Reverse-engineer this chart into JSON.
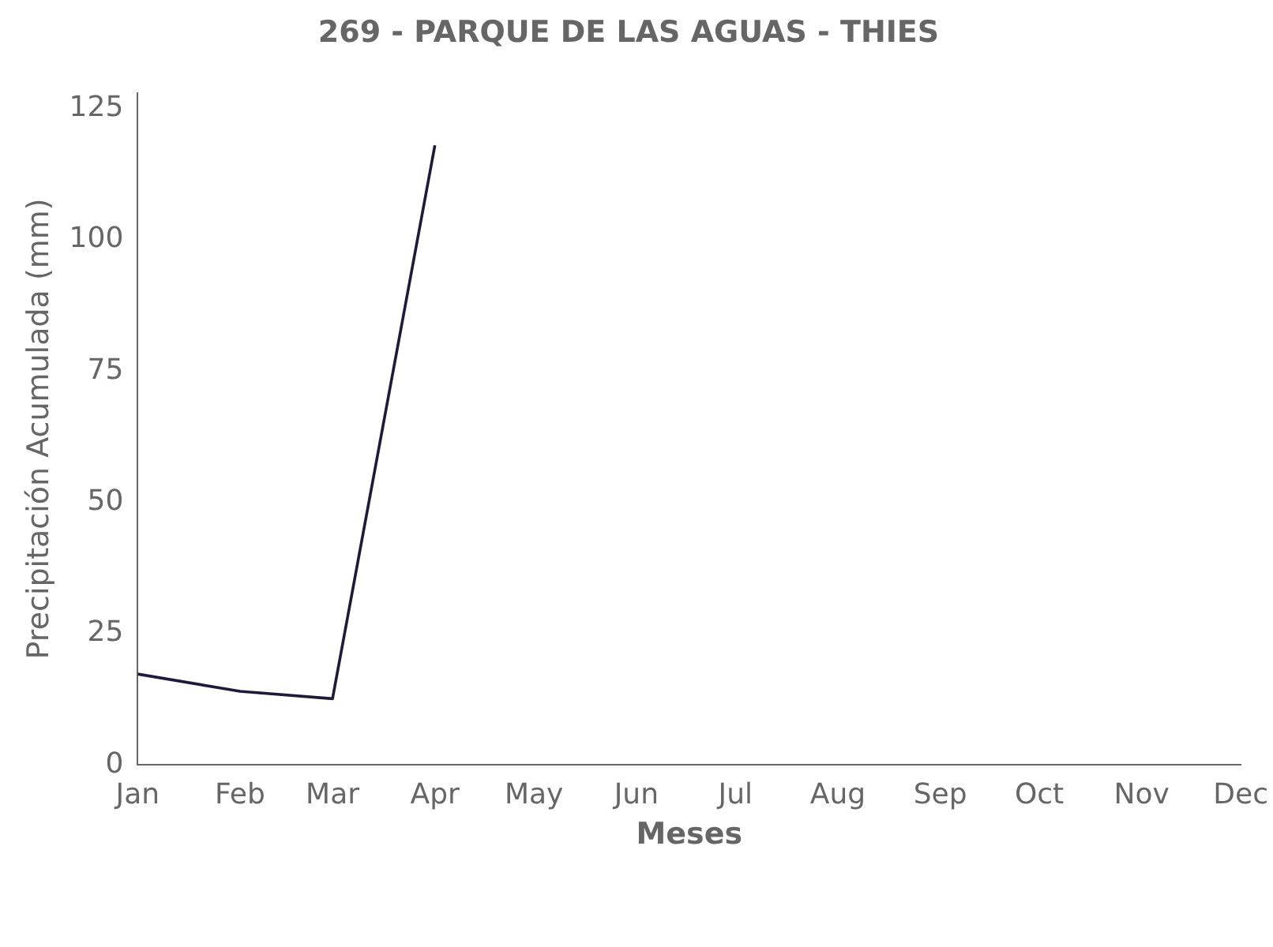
{
  "chart_data": {
    "type": "line",
    "title": "269 - PARQUE DE LAS AGUAS - THIES",
    "xlabel": "Meses",
    "ylabel": "Precipitación Acumulada (mm)",
    "x": [
      "--01-01",
      "--02-01",
      "--03-01",
      "--04-01"
    ],
    "series": [
      {
        "color": "#1f1a3a",
        "values": [
          17.3,
          14.0,
          12.6,
          118.0
        ]
      }
    ],
    "xlim": [
      "--01-01",
      "--12-01"
    ],
    "xticks": [
      {
        "value": "--01-01",
        "label": "Jan"
      },
      {
        "value": "--02-01",
        "label": "Feb"
      },
      {
        "value": "--03-01",
        "label": "Mar"
      },
      {
        "value": "--04-01",
        "label": "Apr"
      },
      {
        "value": "--05-01",
        "label": "May"
      },
      {
        "value": "--06-01",
        "label": "Jun"
      },
      {
        "value": "--07-01",
        "label": "Jul"
      },
      {
        "value": "--08-01",
        "label": "Aug"
      },
      {
        "value": "--09-01",
        "label": "Sep"
      },
      {
        "value": "--10-01",
        "label": "Oct"
      },
      {
        "value": "--11-01",
        "label": "Nov"
      },
      {
        "value": "--12-01",
        "label": "Dec"
      }
    ],
    "ylim": [
      0,
      128
    ],
    "yticks": [
      0,
      25,
      50,
      75,
      100,
      125
    ],
    "grid": false,
    "legend": false,
    "marker": "none",
    "line_style": "solid"
  }
}
